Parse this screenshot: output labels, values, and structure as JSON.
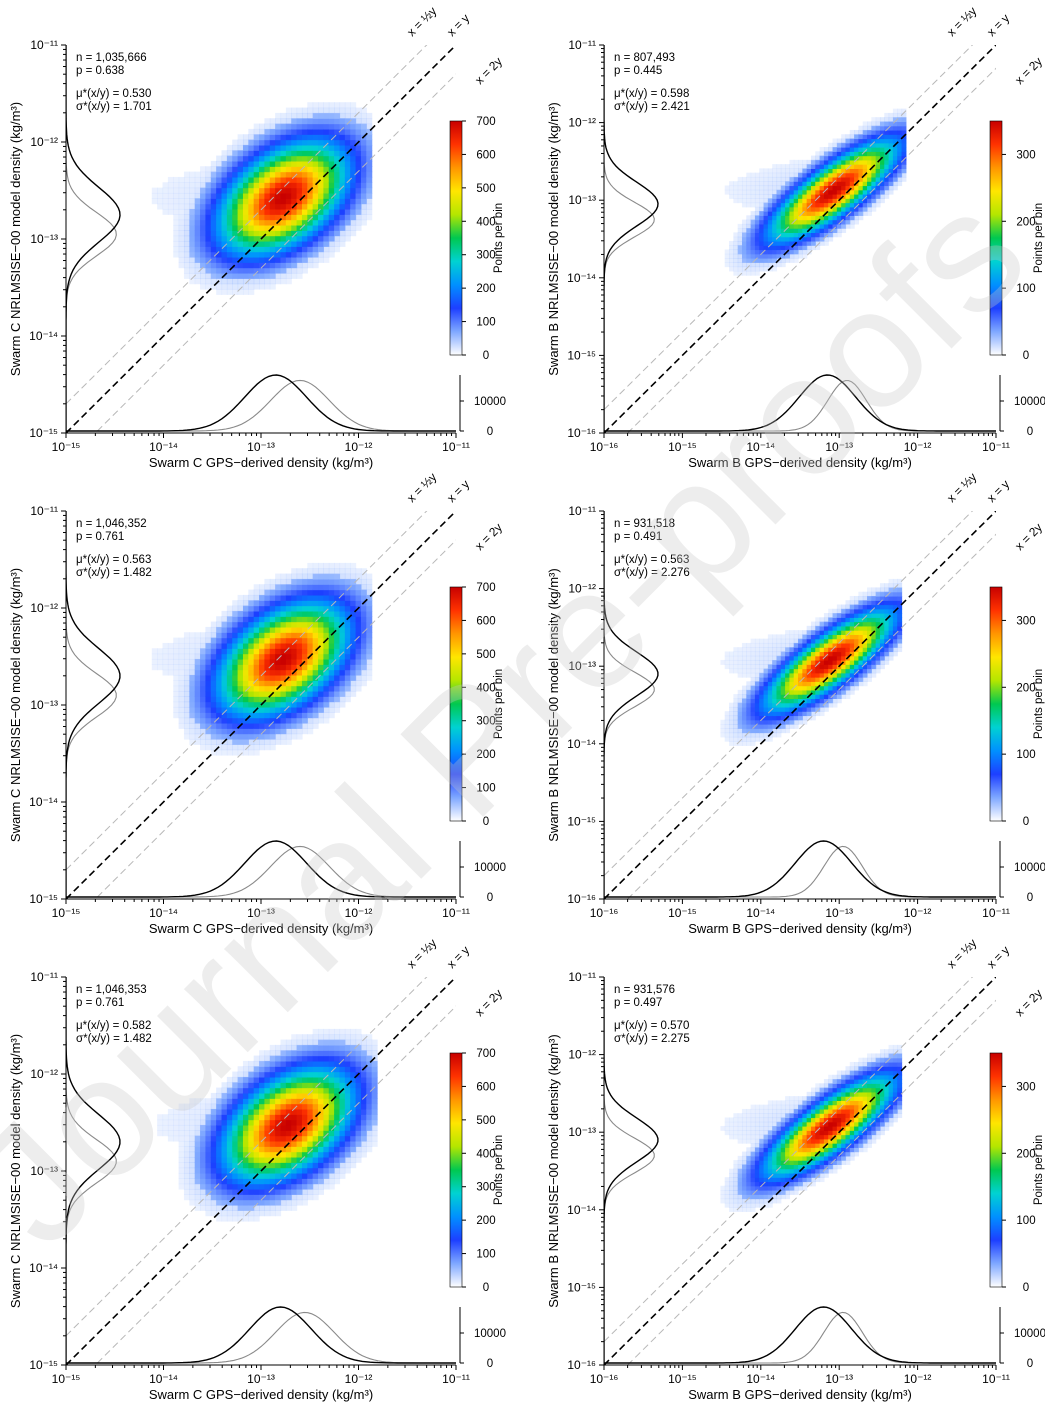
{
  "watermark": "Journal Pre-proofs",
  "colors": {
    "model_hist": "#000000",
    "gps_hist": "#8a8a8a",
    "one_to_one_line": "#000000",
    "ratio_lines": "#b8b8b8",
    "colormap": [
      "#ffffff",
      "#7fa8ff",
      "#1d3fff",
      "#0090ff",
      "#00d2d2",
      "#00c850",
      "#b4e600",
      "#ffe600",
      "#ff9600",
      "#ff3200",
      "#c80000"
    ]
  },
  "line_labels": {
    "half": "x = ½y",
    "equal": "x = y",
    "double": "x = 2y"
  },
  "colorbar_label": "Points per bin",
  "chart_data": [
    {
      "type": "heatmap",
      "satellite": "Swarm C",
      "xlabel": "Swarm C GPS−derived density (kg/m³)",
      "ylabel": "Swarm C NRLMSISE−00 model density (kg/m³)",
      "xlim_exp": [
        -15,
        -11
      ],
      "ylim_exp": [
        -15,
        -11
      ],
      "x_ticks": [
        "10⁻¹⁵",
        "10⁻¹⁴",
        "10⁻¹³",
        "10⁻¹²",
        "10⁻¹¹"
      ],
      "y_ticks": [
        "10⁻¹⁵",
        "10⁻¹⁴",
        "10⁻¹³",
        "10⁻¹²",
        "10⁻¹¹"
      ],
      "stats": {
        "n": "n = 1,035,666",
        "p": "p = 0.638",
        "mu": "μ*(x/y) = 0.530",
        "sigma": "σ*(x/y) = 1.701"
      },
      "colorbar": {
        "min": 0,
        "max": 700,
        "ticks": [
          "0",
          "100",
          "200",
          "300",
          "400",
          "500",
          "600",
          "700"
        ]
      },
      "hist_ticks": [
        "0",
        "10000"
      ],
      "cluster": {
        "x_center_exp": -12.8,
        "y_center_exp": -12.6,
        "peak": 700
      }
    },
    {
      "type": "heatmap",
      "satellite": "Swarm B",
      "xlabel": "Swarm B GPS−derived density (kg/m³)",
      "ylabel": "Swarm B NRLMSISE−00 model density (kg/m³)",
      "xlim_exp": [
        -16,
        -11
      ],
      "ylim_exp": [
        -16,
        -11
      ],
      "x_ticks": [
        "10⁻¹⁶",
        "10⁻¹⁵",
        "10⁻¹⁴",
        "10⁻¹³",
        "10⁻¹²",
        "10⁻¹¹"
      ],
      "y_ticks": [
        "10⁻¹⁶",
        "10⁻¹⁵",
        "10⁻¹⁴",
        "10⁻¹³",
        "10⁻¹²",
        "10⁻¹¹"
      ],
      "stats": {
        "n": "n = 807,493",
        "p": "p = 0.445",
        "mu": "μ*(x/y) = 0.598",
        "sigma": "σ*(x/y) = 2.421"
      },
      "colorbar": {
        "min": 0,
        "max": 350,
        "ticks": [
          "0",
          "100",
          "200",
          "300"
        ]
      },
      "hist_ticks": [
        "0",
        "10000"
      ],
      "cluster": {
        "x_center_exp": -13.1,
        "y_center_exp": -12.9,
        "peak": 350
      }
    },
    {
      "type": "heatmap",
      "satellite": "Swarm C",
      "xlabel": "Swarm C GPS−derived density (kg/m³)",
      "ylabel": "Swarm C NRLMSISE−00 model density (kg/m³)",
      "xlim_exp": [
        -15,
        -11
      ],
      "ylim_exp": [
        -15,
        -11
      ],
      "x_ticks": [
        "10⁻¹⁵",
        "10⁻¹⁴",
        "10⁻¹³",
        "10⁻¹²",
        "10⁻¹¹"
      ],
      "y_ticks": [
        "10⁻¹⁵",
        "10⁻¹⁴",
        "10⁻¹³",
        "10⁻¹²",
        "10⁻¹¹"
      ],
      "stats": {
        "n": "n = 1,046,352",
        "p": "p = 0.761",
        "mu": "μ*(x/y) = 0.563",
        "sigma": "σ*(x/y) = 1.482"
      },
      "colorbar": {
        "min": 0,
        "max": 700,
        "ticks": [
          "0",
          "100",
          "200",
          "300",
          "400",
          "500",
          "600",
          "700"
        ]
      },
      "hist_ticks": [
        "0",
        "10000"
      ],
      "cluster": {
        "x_center_exp": -12.8,
        "y_center_exp": -12.55,
        "peak": 700
      }
    },
    {
      "type": "heatmap",
      "satellite": "Swarm B",
      "xlabel": "Swarm B GPS−derived density (kg/m³)",
      "ylabel": "Swarm B NRLMSISE−00 model density (kg/m³)",
      "xlim_exp": [
        -16,
        -11
      ],
      "ylim_exp": [
        -16,
        -11
      ],
      "x_ticks": [
        "10⁻¹⁶",
        "10⁻¹⁵",
        "10⁻¹⁴",
        "10⁻¹³",
        "10⁻¹²",
        "10⁻¹¹"
      ],
      "y_ticks": [
        "10⁻¹⁶",
        "10⁻¹⁵",
        "10⁻¹⁴",
        "10⁻¹³",
        "10⁻¹²",
        "10⁻¹¹"
      ],
      "stats": {
        "n": "n = 931,518",
        "p": "p = 0.491",
        "mu": "μ*(x/y) = 0.563",
        "sigma": "σ*(x/y) = 2.276"
      },
      "colorbar": {
        "min": 0,
        "max": 350,
        "ticks": [
          "0",
          "100",
          "200",
          "300"
        ]
      },
      "hist_ticks": [
        "0",
        "10000"
      ],
      "cluster": {
        "x_center_exp": -13.15,
        "y_center_exp": -12.95,
        "peak": 350
      }
    },
    {
      "type": "heatmap",
      "satellite": "Swarm C",
      "xlabel": "Swarm C GPS−derived density (kg/m³)",
      "ylabel": "Swarm C NRLMSISE−00 model density (kg/m³)",
      "xlim_exp": [
        -15,
        -11
      ],
      "ylim_exp": [
        -15,
        -11
      ],
      "x_ticks": [
        "10⁻¹⁵",
        "10⁻¹⁴",
        "10⁻¹³",
        "10⁻¹²",
        "10⁻¹¹"
      ],
      "y_ticks": [
        "10⁻¹⁵",
        "10⁻¹⁴",
        "10⁻¹³",
        "10⁻¹²",
        "10⁻¹¹"
      ],
      "stats": {
        "n": "n = 1,046,353",
        "p": "p = 0.761",
        "mu": "μ*(x/y) = 0.582",
        "sigma": "σ*(x/y) = 1.482"
      },
      "colorbar": {
        "min": 0,
        "max": 700,
        "ticks": [
          "0",
          "100",
          "200",
          "300",
          "400",
          "500",
          "600",
          "700"
        ]
      },
      "hist_ticks": [
        "0",
        "10000"
      ],
      "cluster": {
        "x_center_exp": -12.75,
        "y_center_exp": -12.55,
        "peak": 700
      }
    },
    {
      "type": "heatmap",
      "satellite": "Swarm B",
      "xlabel": "Swarm B GPS−derived density (kg/m³)",
      "ylabel": "Swarm B NRLMSISE−00 model density (kg/m³)",
      "xlim_exp": [
        -16,
        -11
      ],
      "ylim_exp": [
        -16,
        -11
      ],
      "x_ticks": [
        "10⁻¹⁶",
        "10⁻¹⁵",
        "10⁻¹⁴",
        "10⁻¹³",
        "10⁻¹²",
        "10⁻¹¹"
      ],
      "y_ticks": [
        "10⁻¹⁶",
        "10⁻¹⁵",
        "10⁻¹⁴",
        "10⁻¹³",
        "10⁻¹²",
        "10⁻¹¹"
      ],
      "stats": {
        "n": "n = 931,576",
        "p": "p = 0.497",
        "mu": "μ*(x/y) = 0.570",
        "sigma": "σ*(x/y) = 2.275"
      },
      "colorbar": {
        "min": 0,
        "max": 350,
        "ticks": [
          "0",
          "100",
          "200",
          "300"
        ]
      },
      "hist_ticks": [
        "0",
        "10000"
      ],
      "cluster": {
        "x_center_exp": -13.15,
        "y_center_exp": -12.95,
        "peak": 350
      }
    }
  ]
}
